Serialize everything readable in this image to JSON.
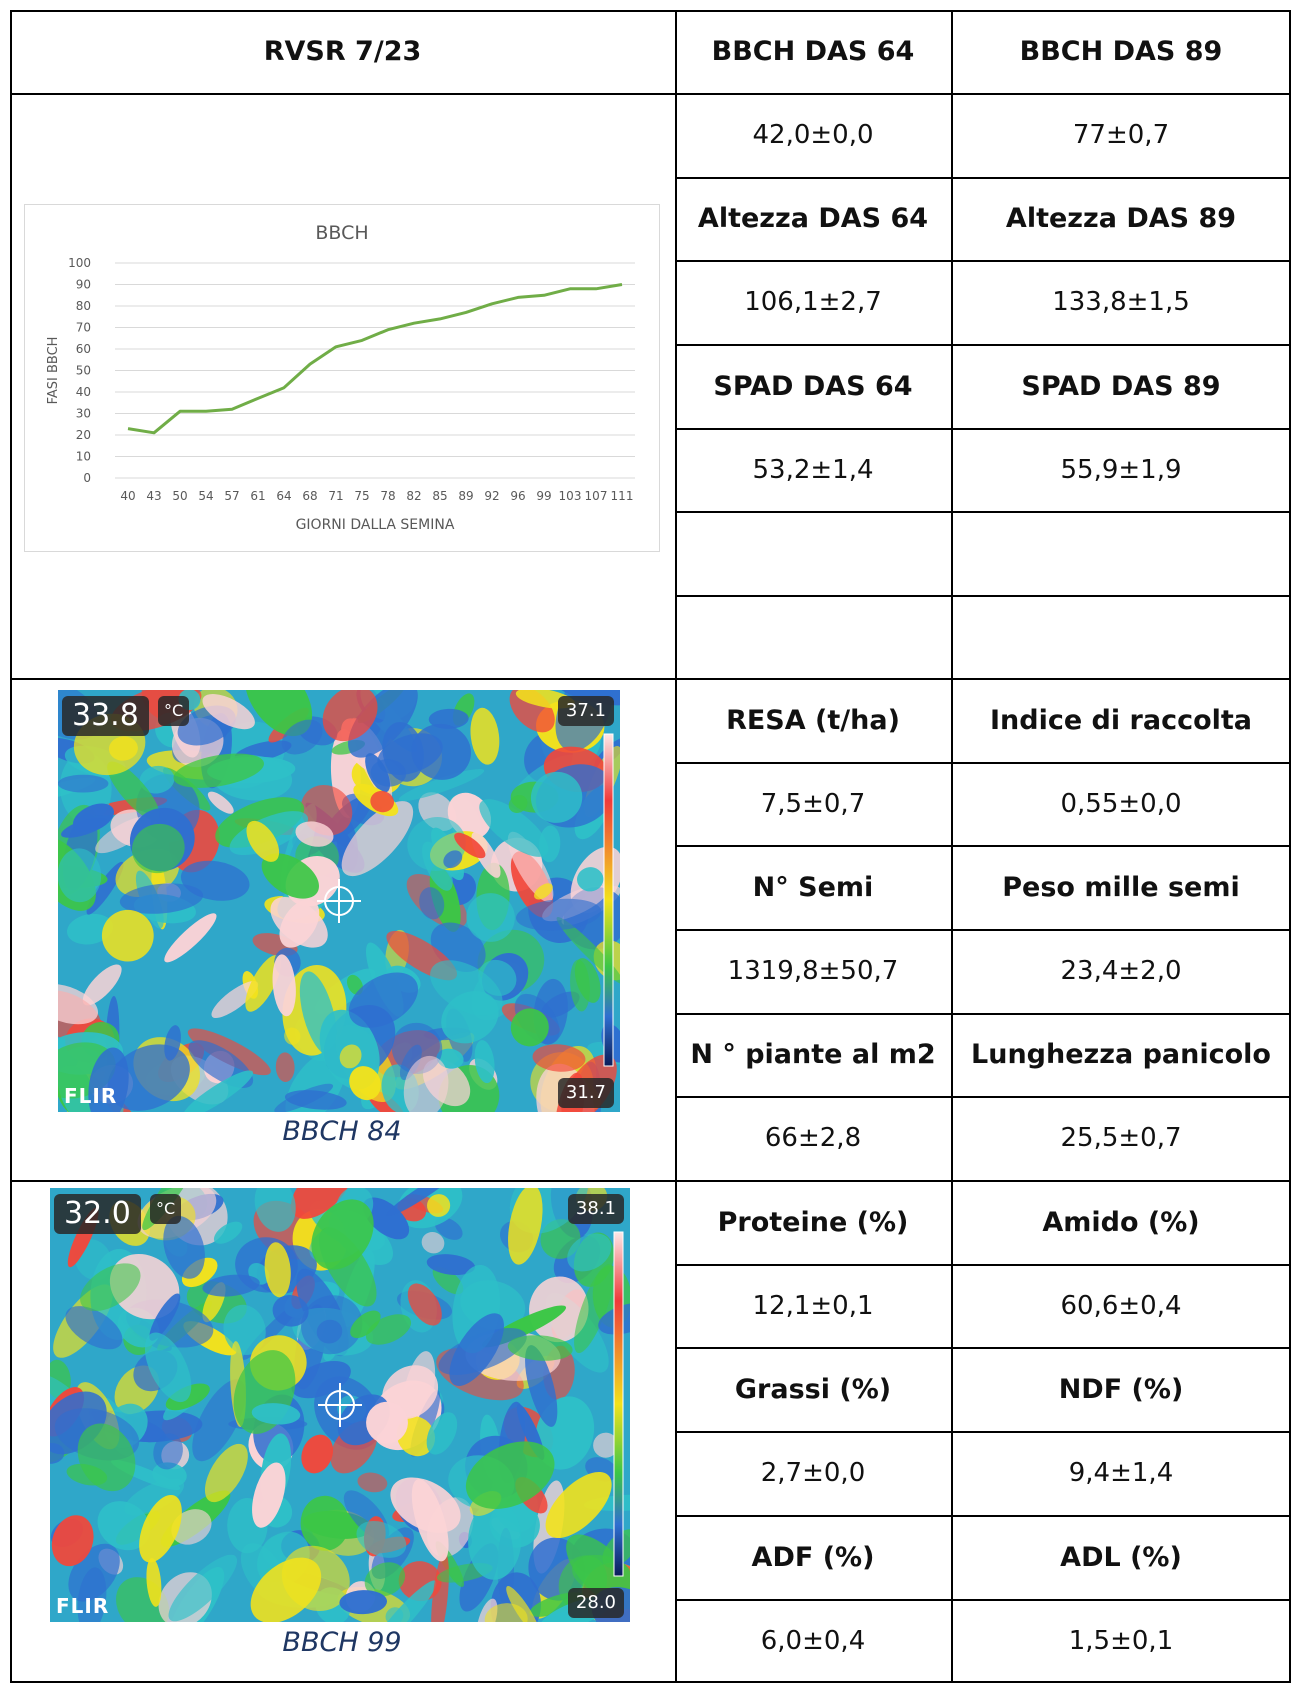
{
  "table": {
    "header": {
      "title": "RVSR 7/23",
      "col1": "BBCH DAS 64",
      "col2": "BBCH DAS 89"
    },
    "rows_top": [
      {
        "c1": "42,0±0,0",
        "c2": "77±0,7",
        "kind": "val"
      },
      {
        "c1": "Altezza DAS 64",
        "c2": "Altezza DAS 89",
        "kind": "hdr"
      },
      {
        "c1": "106,1±2,7",
        "c2": "133,8±1,5",
        "kind": "val"
      },
      {
        "c1": "SPAD DAS 64",
        "c2": "SPAD DAS 89",
        "kind": "hdr"
      },
      {
        "c1": "53,2±1,4",
        "c2": "55,9±1,9",
        "kind": "val"
      },
      {
        "c1": "",
        "c2": "",
        "kind": "val"
      },
      {
        "c1": "",
        "c2": "",
        "kind": "val"
      }
    ],
    "rows_mid": [
      {
        "c1": "RESA (t/ha)",
        "c2": "Indice di raccolta",
        "kind": "hdr"
      },
      {
        "c1": "7,5±0,7",
        "c2": "0,55±0,0",
        "kind": "val"
      },
      {
        "c1": "N° Semi",
        "c2": "Peso mille semi",
        "kind": "hdr"
      },
      {
        "c1": "1319,8±50,7",
        "c2": "23,4±2,0",
        "kind": "val"
      },
      {
        "c1": "N ° piante al m2",
        "c2": "Lunghezza panicolo",
        "kind": "hdr"
      },
      {
        "c1": "66±2,8",
        "c2": "25,5±0,7",
        "kind": "val"
      }
    ],
    "rows_bot": [
      {
        "c1": "Proteine (%)",
        "c2": "Amido (%)",
        "kind": "hdr"
      },
      {
        "c1": "12,1±0,1",
        "c2": "60,6±0,4",
        "kind": "val"
      },
      {
        "c1": "Grassi (%)",
        "c2": "NDF (%)",
        "kind": "hdr"
      },
      {
        "c1": "2,7±0,0",
        "c2": "9,4±1,4",
        "kind": "val"
      },
      {
        "c1": "ADF (%)",
        "c2": "ADL (%)",
        "kind": "hdr"
      },
      {
        "c1": "6,0±0,4",
        "c2": "1,5±0,1",
        "kind": "val"
      }
    ]
  },
  "thermal_images": [
    {
      "temp": "33.8",
      "unit": "°C",
      "max": "37.1",
      "min": "31.7",
      "brand": "FLIR",
      "caption": "BBCH 84"
    },
    {
      "temp": "32.0",
      "unit": "°C",
      "max": "38.1",
      "min": "28.0",
      "brand": "FLIR",
      "caption": "BBCH 99"
    }
  ],
  "chart_data": {
    "type": "line",
    "title": "BBCH",
    "xlabel": "GIORNI DALLA SEMINA",
    "ylabel": "FASI BBCH",
    "ylim": [
      0,
      100
    ],
    "yticks": [
      0,
      10,
      20,
      30,
      40,
      50,
      60,
      70,
      80,
      90,
      100
    ],
    "grid": true,
    "categories": [
      "40",
      "43",
      "50",
      "54",
      "57",
      "61",
      "64",
      "68",
      "71",
      "75",
      "78",
      "82",
      "85",
      "89",
      "92",
      "96",
      "99",
      "103",
      "107",
      "111"
    ],
    "values": [
      23,
      21,
      31,
      31,
      32,
      37,
      42,
      53,
      61,
      64,
      69,
      72,
      74,
      77,
      81,
      84,
      85,
      88,
      88,
      90
    ],
    "line_color": "#70ad47"
  }
}
